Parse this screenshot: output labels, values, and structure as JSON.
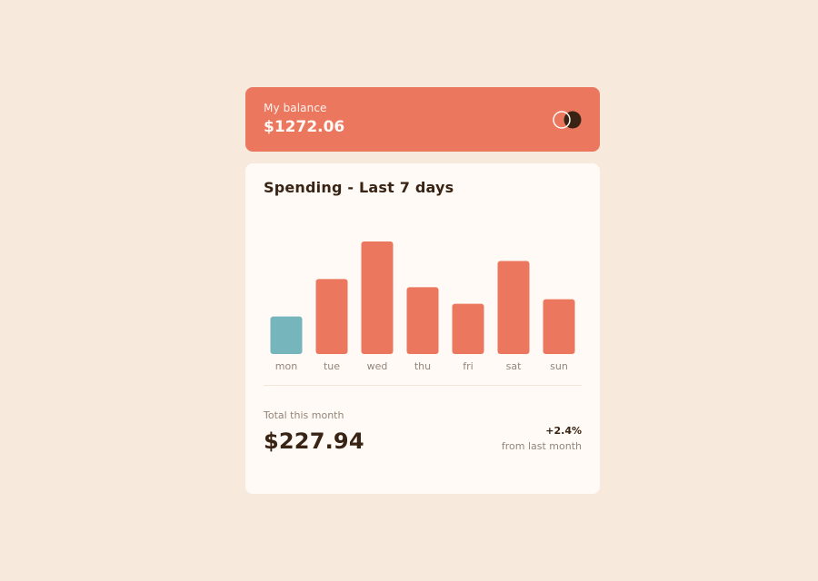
{
  "balance": {
    "label": "My balance",
    "amount": "$1272.06"
  },
  "spending": {
    "title": "Spending - Last 7 days",
    "total_label": "Total this month",
    "total_amount": "$227.94",
    "change_percent": "+2.4%",
    "change_label": "from last month"
  },
  "icons": {
    "logo": "overlapping-circles-logo"
  },
  "colors": {
    "accent": "#ec775f",
    "highlight": "#76b5bc",
    "background": "#f8e9dd",
    "card": "#fffaf5",
    "text_dark": "#382314",
    "text_muted": "#92857a"
  },
  "chart_data": {
    "type": "bar",
    "categories": [
      "mon",
      "tue",
      "wed",
      "thu",
      "fri",
      "sat",
      "sun"
    ],
    "values": [
      17.45,
      34.91,
      52.36,
      31.07,
      23.39,
      43.28,
      25.48
    ],
    "highlight_index": 0,
    "title": "Spending - Last 7 days",
    "xlabel": "",
    "ylabel": "",
    "grid": false,
    "legend": "none"
  }
}
